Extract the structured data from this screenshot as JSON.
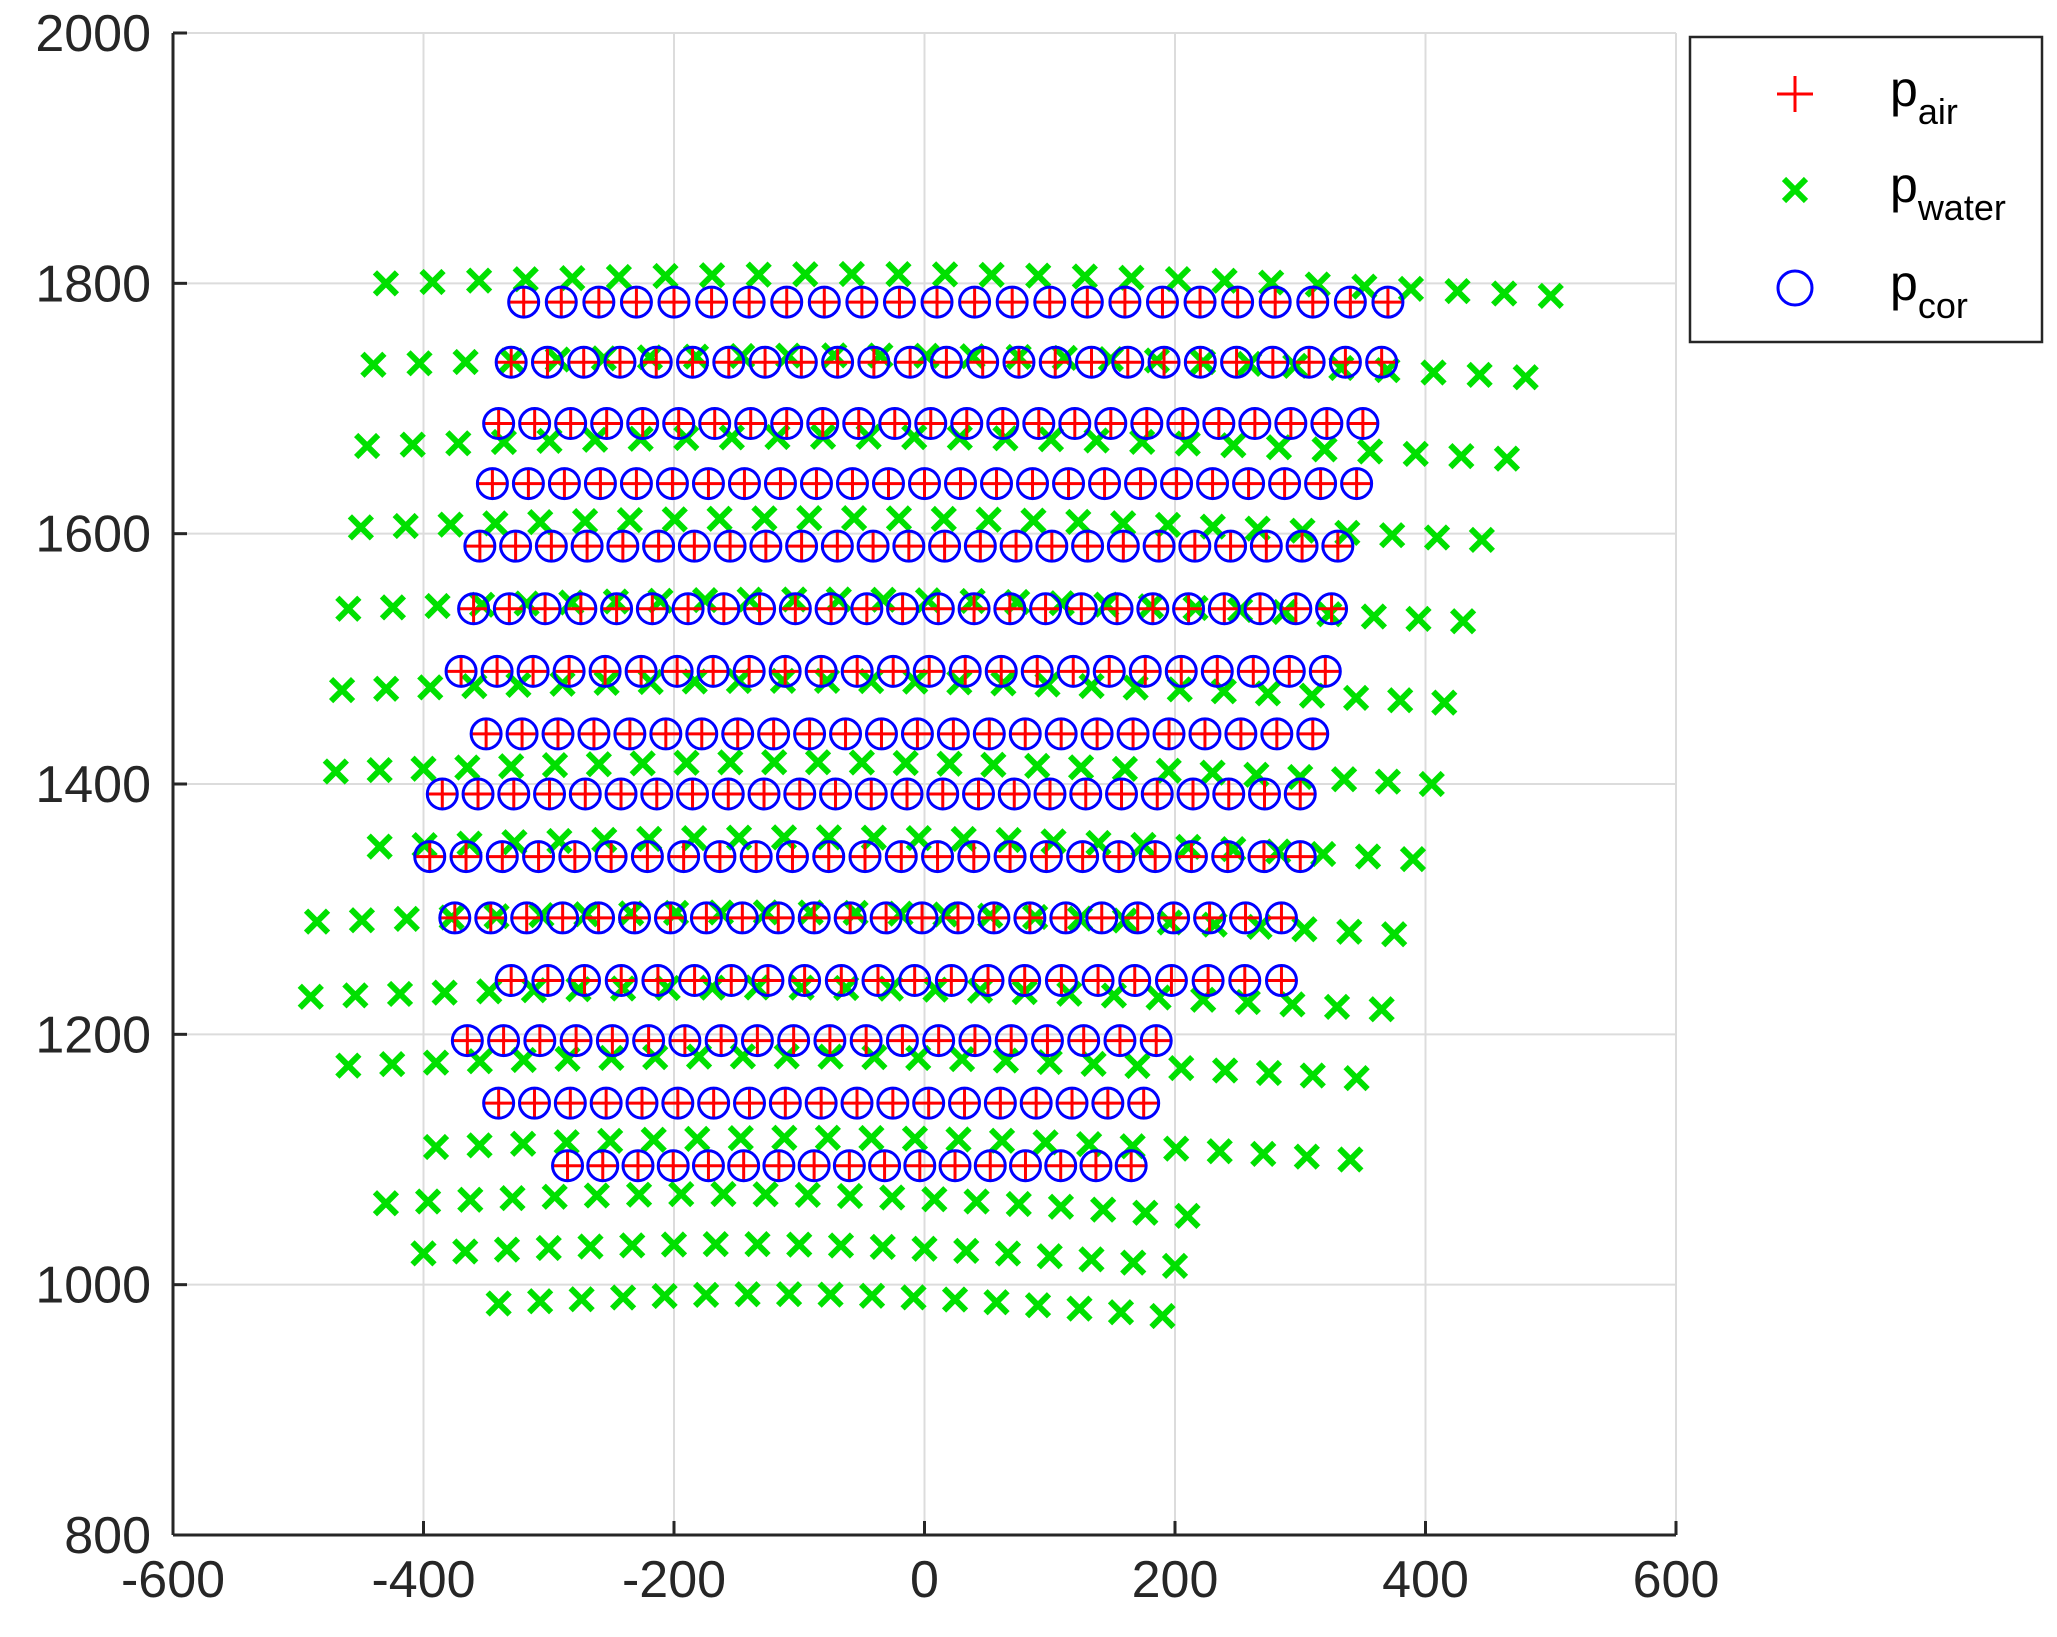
{
  "chart_data": {
    "type": "scatter",
    "title": "",
    "xlabel": "",
    "ylabel": "",
    "xlim": [
      -600,
      600
    ],
    "ylim": [
      800,
      2000
    ],
    "xticks": [
      -600,
      -400,
      -200,
      0,
      200,
      400,
      600
    ],
    "yticks": [
      800,
      1000,
      1200,
      1400,
      1600,
      1800,
      2000
    ],
    "xtick_labels": [
      "-600",
      "-400",
      "-200",
      "0",
      "200",
      "400",
      "600"
    ],
    "ytick_labels": [
      "800",
      "1000",
      "1200",
      "1400",
      "1600",
      "1800",
      "2000"
    ],
    "grid": true,
    "legend_position": "outside-top-right",
    "series": [
      {
        "key": "air",
        "label_main": "p",
        "label_sub": "air",
        "marker": "plus",
        "color": "#ff0000",
        "rows": [
          {
            "y": 1785,
            "x_start": -320,
            "x_end": 370,
            "n": 24
          },
          {
            "y": 1737,
            "x_start": -330,
            "x_end": 365,
            "n": 25
          },
          {
            "y": 1688,
            "x_start": -340,
            "x_end": 350,
            "n": 25
          },
          {
            "y": 1640,
            "x_start": -345,
            "x_end": 345,
            "n": 25
          },
          {
            "y": 1590,
            "x_start": -355,
            "x_end": 330,
            "n": 25
          },
          {
            "y": 1540,
            "x_start": -360,
            "x_end": 325,
            "n": 25
          },
          {
            "y": 1490,
            "x_start": -370,
            "x_end": 320,
            "n": 25
          },
          {
            "y": 1440,
            "x_start": -350,
            "x_end": 310,
            "n": 24
          },
          {
            "y": 1392,
            "x_start": -385,
            "x_end": 300,
            "n": 25
          },
          {
            "y": 1342,
            "x_start": -395,
            "x_end": 300,
            "n": 25
          },
          {
            "y": 1293,
            "x_start": -375,
            "x_end": 285,
            "n": 24
          },
          {
            "y": 1243,
            "x_start": -330,
            "x_end": 285,
            "n": 22
          },
          {
            "y": 1195,
            "x_start": -365,
            "x_end": 185,
            "n": 20
          },
          {
            "y": 1145,
            "x_start": -340,
            "x_end": 175,
            "n": 19
          },
          {
            "y": 1095,
            "x_start": -285,
            "x_end": 165,
            "n": 17
          }
        ]
      },
      {
        "key": "water",
        "label_main": "p",
        "label_sub": "water",
        "marker": "x",
        "color": "#00e000",
        "rows": [
          {
            "y": 1800,
            "x_start": -430,
            "x_end": 500,
            "n": 26
          },
          {
            "y": 1735,
            "x_start": -440,
            "x_end": 480,
            "n": 26
          },
          {
            "y": 1670,
            "x_start": -445,
            "x_end": 465,
            "n": 26
          },
          {
            "y": 1605,
            "x_start": -450,
            "x_end": 445,
            "n": 26
          },
          {
            "y": 1540,
            "x_start": -460,
            "x_end": 430,
            "n": 26
          },
          {
            "y": 1475,
            "x_start": -465,
            "x_end": 415,
            "n": 26
          },
          {
            "y": 1410,
            "x_start": -470,
            "x_end": 405,
            "n": 26
          },
          {
            "y": 1350,
            "x_start": -435,
            "x_end": 390,
            "n": 24
          },
          {
            "y": 1290,
            "x_start": -485,
            "x_end": 375,
            "n": 25
          },
          {
            "y": 1230,
            "x_start": -490,
            "x_end": 365,
            "n": 25
          },
          {
            "y": 1175,
            "x_start": -460,
            "x_end": 345,
            "n": 24
          },
          {
            "y": 1110,
            "x_start": -390,
            "x_end": 340,
            "n": 22
          },
          {
            "y": 1065,
            "x_start": -430,
            "x_end": 210,
            "n": 20
          },
          {
            "y": 1025,
            "x_start": -400,
            "x_end": 200,
            "n": 19
          },
          {
            "y": 985,
            "x_start": -340,
            "x_end": 190,
            "n": 17
          }
        ]
      },
      {
        "key": "cor",
        "label_main": "p",
        "label_sub": "cor",
        "marker": "circle",
        "color": "#0000ff",
        "rows": [
          {
            "y": 1785,
            "x_start": -320,
            "x_end": 370,
            "n": 24
          },
          {
            "y": 1737,
            "x_start": -330,
            "x_end": 365,
            "n": 25
          },
          {
            "y": 1688,
            "x_start": -340,
            "x_end": 350,
            "n": 25
          },
          {
            "y": 1640,
            "x_start": -345,
            "x_end": 345,
            "n": 25
          },
          {
            "y": 1590,
            "x_start": -355,
            "x_end": 330,
            "n": 25
          },
          {
            "y": 1540,
            "x_start": -360,
            "x_end": 325,
            "n": 25
          },
          {
            "y": 1490,
            "x_start": -370,
            "x_end": 320,
            "n": 25
          },
          {
            "y": 1440,
            "x_start": -350,
            "x_end": 310,
            "n": 24
          },
          {
            "y": 1392,
            "x_start": -385,
            "x_end": 300,
            "n": 25
          },
          {
            "y": 1342,
            "x_start": -395,
            "x_end": 300,
            "n": 25
          },
          {
            "y": 1293,
            "x_start": -375,
            "x_end": 285,
            "n": 24
          },
          {
            "y": 1243,
            "x_start": -330,
            "x_end": 285,
            "n": 22
          },
          {
            "y": 1195,
            "x_start": -365,
            "x_end": 185,
            "n": 20
          },
          {
            "y": 1145,
            "x_start": -340,
            "x_end": 175,
            "n": 19
          },
          {
            "y": 1095,
            "x_start": -285,
            "x_end": 165,
            "n": 17
          }
        ]
      }
    ]
  }
}
